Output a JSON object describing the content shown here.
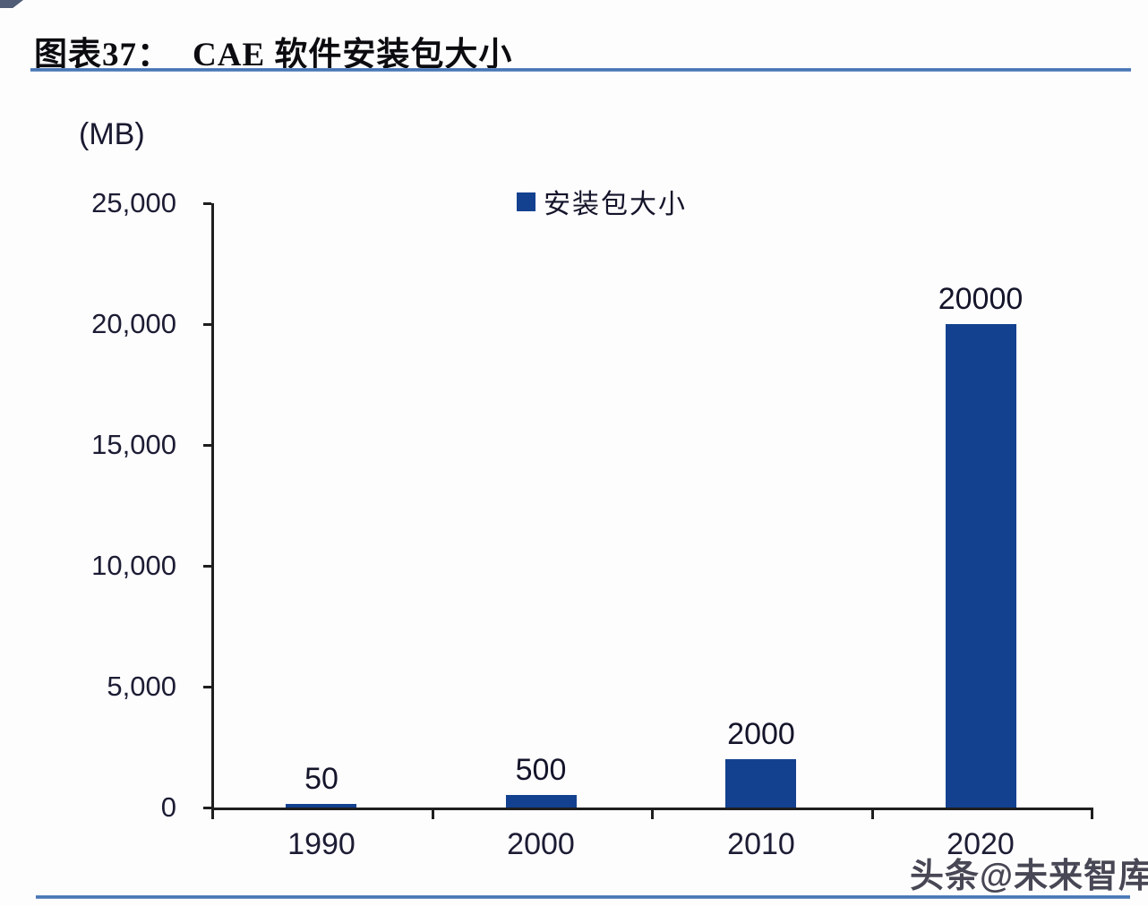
{
  "page": {
    "title_prefix": "图表37：",
    "title": "CAE 软件安装包大小",
    "watermark": "头条@未来智库",
    "accent_line_color": "#4377b6"
  },
  "chart_data": {
    "type": "bar",
    "title": "CAE 软件安装包大小",
    "unit_label": "(MB)",
    "legend": [
      "安装包大小"
    ],
    "legend_position": "top-center",
    "categories": [
      "1990",
      "2000",
      "2010",
      "2020"
    ],
    "values": [
      50,
      500,
      2000,
      20000
    ],
    "data_labels": [
      "50",
      "500",
      "2000",
      "20000"
    ],
    "xlabel": "",
    "ylabel": "(MB)",
    "ylim": [
      0,
      25000
    ],
    "ytick_step": 5000,
    "ytick_labels": [
      "0",
      "5,000",
      "10,000",
      "15,000",
      "20,000",
      "25,000"
    ],
    "grid": false,
    "bar_color": "#13418f",
    "axis_color": "#1e1e1e"
  }
}
